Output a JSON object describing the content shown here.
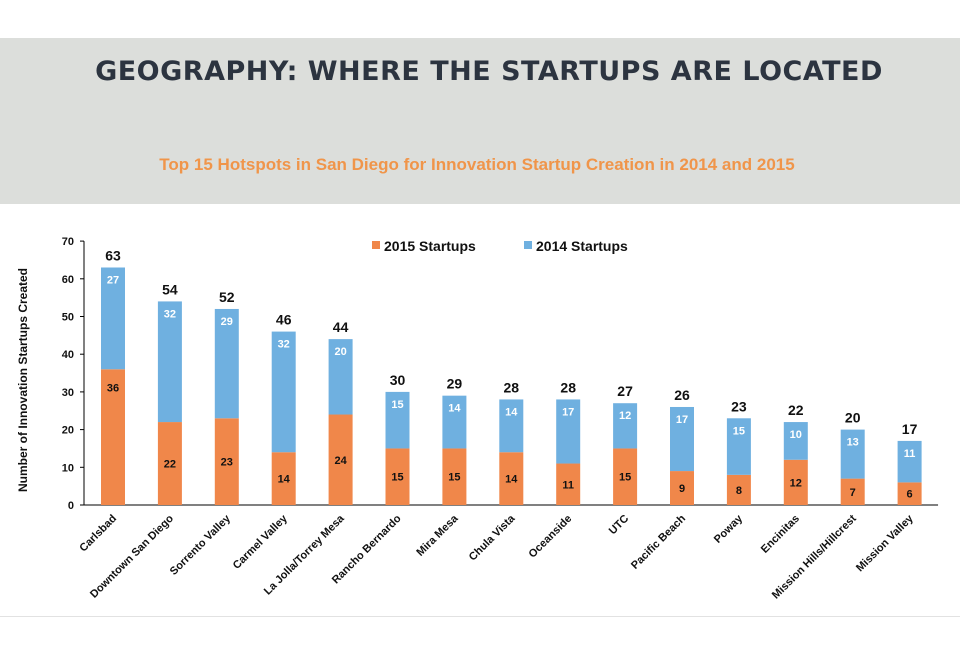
{
  "page": {
    "title": "GEOGRAPHY: WHERE THE STARTUPS ARE LOCATED",
    "subtitle": "Top 15 Hotspots in San Diego for Innovation Startup Creation in 2014 and 2015"
  },
  "colors": {
    "header_band": "#dcdedb",
    "title": "#2c3440",
    "subtitle": "#f0954a",
    "series_2015": "#f0874a",
    "series_2014": "#6fb0e0"
  },
  "chart_data": {
    "type": "bar",
    "stacked": true,
    "title": "",
    "xlabel": "",
    "ylabel": "Number of Innovation Startups Created",
    "ylim": [
      0,
      70
    ],
    "yticks": [
      0,
      10,
      20,
      30,
      40,
      50,
      60,
      70
    ],
    "legend_position": "top-center",
    "grid": false,
    "categories": [
      "Carlsbad",
      "Downtown San Diego",
      "Sorrento Valley",
      "Carmel Valley",
      "La Jolla/Torrey Mesa",
      "Rancho Bernardo",
      "Mira Mesa",
      "Chula Vista",
      "Oceanside",
      "UTC",
      "Pacific Beach",
      "Poway",
      "Encinitas",
      "Mission Hills/Hillcrest",
      "Mission Valley"
    ],
    "series": [
      {
        "name": "2015 Startups",
        "color": "#f0874a",
        "values": [
          36,
          22,
          23,
          14,
          24,
          15,
          15,
          14,
          11,
          15,
          9,
          8,
          12,
          7,
          6
        ]
      },
      {
        "name": "2014 Startups",
        "color": "#6fb0e0",
        "values": [
          27,
          32,
          29,
          32,
          20,
          15,
          14,
          14,
          17,
          12,
          17,
          15,
          10,
          13,
          11
        ]
      }
    ],
    "totals": [
      63,
      54,
      52,
      46,
      44,
      30,
      29,
      28,
      28,
      27,
      26,
      23,
      22,
      20,
      17
    ]
  }
}
